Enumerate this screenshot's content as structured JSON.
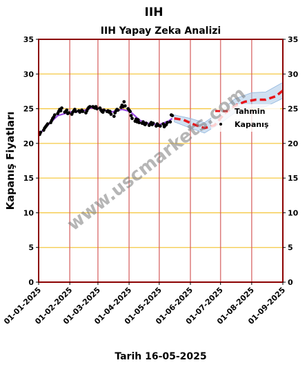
{
  "page_title": "IIH",
  "xlabel_text": "Tarih 16-05-2025",
  "watermark": "www.uscmarkets.com",
  "chart_data": {
    "type": "line",
    "title": "IIH Yapay Zeka Analizi",
    "xlabel": "Tarih 16-05-2025",
    "ylabel": "Kapanış Fiyatları",
    "ylim": [
      0,
      35
    ],
    "yticks": [
      0,
      5,
      10,
      15,
      20,
      25,
      30,
      35
    ],
    "xlim": [
      "2025-01-01",
      "2025-09-01"
    ],
    "xticks": [
      "2025-01-01",
      "2025-02-01",
      "2025-03-01",
      "2025-04-01",
      "2025-05-01",
      "2025-06-01",
      "2025-07-01",
      "2025-08-01",
      "2025-09-01"
    ],
    "xtick_labels": [
      "01-01-2025",
      "01-02-2025",
      "01-03-2025",
      "01-04-2025",
      "01-05-2025",
      "01-06-2025",
      "01-07-2025",
      "01-08-2025",
      "01-09-2025"
    ],
    "legend_position": "right",
    "colors": {
      "frame": "#8b0000",
      "hgrid": "#f5c842",
      "vgrid": "#d45a5a",
      "actual": "#000000",
      "smooth": "#8a2be2",
      "forecast": "#e8141a",
      "band": "#a9c8e8"
    },
    "series": [
      {
        "name": "Kapanış",
        "style": "scatter",
        "points": [
          [
            "2025-01-02",
            21.3
          ],
          [
            "2025-01-03",
            21.6
          ],
          [
            "2025-01-06",
            21.9
          ],
          [
            "2025-01-07",
            22.2
          ],
          [
            "2025-01-08",
            22.4
          ],
          [
            "2025-01-09",
            22.6
          ],
          [
            "2025-01-10",
            22.8
          ],
          [
            "2025-01-13",
            23.0
          ],
          [
            "2025-01-14",
            23.3
          ],
          [
            "2025-01-15",
            23.6
          ],
          [
            "2025-01-16",
            23.8
          ],
          [
            "2025-01-17",
            24.1
          ],
          [
            "2025-01-20",
            24.3
          ],
          [
            "2025-01-21",
            24.6
          ],
          [
            "2025-01-22",
            24.9
          ],
          [
            "2025-01-23",
            24.7
          ],
          [
            "2025-01-24",
            25.1
          ],
          [
            "2025-01-27",
            24.5
          ],
          [
            "2025-01-28",
            24.6
          ],
          [
            "2025-01-29",
            24.8
          ],
          [
            "2025-01-30",
            24.3
          ],
          [
            "2025-01-31",
            24.4
          ],
          [
            "2025-02-03",
            24.2
          ],
          [
            "2025-02-04",
            24.5
          ],
          [
            "2025-02-05",
            24.7
          ],
          [
            "2025-02-06",
            24.9
          ],
          [
            "2025-02-07",
            24.6
          ],
          [
            "2025-02-10",
            24.7
          ],
          [
            "2025-02-11",
            24.5
          ],
          [
            "2025-02-12",
            24.6
          ],
          [
            "2025-02-13",
            24.8
          ],
          [
            "2025-02-14",
            24.6
          ],
          [
            "2025-02-17",
            24.4
          ],
          [
            "2025-02-18",
            24.7
          ],
          [
            "2025-02-19",
            25.0
          ],
          [
            "2025-02-20",
            25.2
          ],
          [
            "2025-02-21",
            25.3
          ],
          [
            "2025-02-24",
            25.3
          ],
          [
            "2025-02-25",
            25.2
          ],
          [
            "2025-02-26",
            25.1
          ],
          [
            "2025-02-27",
            25.3
          ],
          [
            "2025-02-28",
            25.0
          ],
          [
            "2025-03-03",
            25.1
          ],
          [
            "2025-03-04",
            24.8
          ],
          [
            "2025-03-05",
            24.6
          ],
          [
            "2025-03-06",
            24.5
          ],
          [
            "2025-03-07",
            24.8
          ],
          [
            "2025-03-10",
            24.6
          ],
          [
            "2025-03-11",
            24.7
          ],
          [
            "2025-03-12",
            24.5
          ],
          [
            "2025-03-13",
            24.6
          ],
          [
            "2025-03-14",
            24.2
          ],
          [
            "2025-03-17",
            23.9
          ],
          [
            "2025-03-18",
            24.4
          ],
          [
            "2025-03-19",
            24.7
          ],
          [
            "2025-03-20",
            24.9
          ],
          [
            "2025-03-21",
            24.8
          ],
          [
            "2025-03-24",
            25.2
          ],
          [
            "2025-03-25",
            25.5
          ],
          [
            "2025-03-26",
            25.3
          ],
          [
            "2025-03-27",
            26.0
          ],
          [
            "2025-03-28",
            25.4
          ],
          [
            "2025-03-31",
            25.0
          ],
          [
            "2025-04-01",
            24.8
          ],
          [
            "2025-04-02",
            24.6
          ],
          [
            "2025-04-03",
            24.0
          ],
          [
            "2025-04-04",
            23.6
          ],
          [
            "2025-04-07",
            23.2
          ],
          [
            "2025-04-08",
            23.5
          ],
          [
            "2025-04-09",
            23.1
          ],
          [
            "2025-04-10",
            23.4
          ],
          [
            "2025-04-11",
            23.0
          ],
          [
            "2025-04-14",
            22.9
          ],
          [
            "2025-04-15",
            23.1
          ],
          [
            "2025-04-16",
            22.8
          ],
          [
            "2025-04-17",
            22.7
          ],
          [
            "2025-04-18",
            22.9
          ],
          [
            "2025-04-21",
            22.6
          ],
          [
            "2025-04-22",
            22.8
          ],
          [
            "2025-04-23",
            23.0
          ],
          [
            "2025-04-24",
            22.7
          ],
          [
            "2025-04-25",
            22.9
          ],
          [
            "2025-04-28",
            22.5
          ],
          [
            "2025-04-29",
            22.8
          ],
          [
            "2025-04-30",
            22.6
          ],
          [
            "2025-05-02",
            22.5
          ],
          [
            "2025-05-05",
            22.8
          ],
          [
            "2025-05-06",
            22.4
          ],
          [
            "2025-05-07",
            22.6
          ],
          [
            "2025-05-08",
            22.7
          ],
          [
            "2025-05-09",
            23.0
          ],
          [
            "2025-05-12",
            23.1
          ],
          [
            "2025-05-13",
            24.1
          ],
          [
            "2025-05-14",
            24.0
          ]
        ]
      },
      {
        "name": "",
        "style": "smooth",
        "points": [
          [
            "2025-01-02",
            21.4
          ],
          [
            "2025-01-10",
            22.6
          ],
          [
            "2025-01-20",
            24.0
          ],
          [
            "2025-02-01",
            24.5
          ],
          [
            "2025-02-12",
            24.6
          ],
          [
            "2025-02-22",
            25.1
          ],
          [
            "2025-03-03",
            25.0
          ],
          [
            "2025-03-14",
            24.5
          ],
          [
            "2025-03-25",
            24.9
          ],
          [
            "2025-04-02",
            24.6
          ],
          [
            "2025-04-12",
            23.3
          ],
          [
            "2025-04-22",
            22.8
          ],
          [
            "2025-05-01",
            22.7
          ],
          [
            "2025-05-10",
            23.2
          ],
          [
            "2025-05-14",
            23.6
          ]
        ]
      },
      {
        "name": "Tahmin",
        "style": "dashed",
        "points": [
          [
            "2025-05-16",
            23.6
          ],
          [
            "2025-05-25",
            23.4
          ],
          [
            "2025-06-05",
            22.7
          ],
          [
            "2025-06-15",
            22.2
          ],
          [
            "2025-06-25",
            22.6
          ],
          [
            "2025-07-05",
            24.3
          ],
          [
            "2025-07-15",
            25.4
          ],
          [
            "2025-07-25",
            26.0
          ],
          [
            "2025-08-05",
            26.3
          ],
          [
            "2025-08-15",
            26.3
          ],
          [
            "2025-08-25",
            26.8
          ],
          [
            "2025-09-01",
            27.6
          ]
        ]
      }
    ],
    "confidence_band": [
      [
        "2025-05-16",
        23.1,
        24.1
      ],
      [
        "2025-06-01",
        22.2,
        23.6
      ],
      [
        "2025-06-15",
        21.5,
        23.0
      ],
      [
        "2025-07-01",
        22.9,
        24.6
      ],
      [
        "2025-07-15",
        24.4,
        26.4
      ],
      [
        "2025-08-01",
        25.2,
        27.3
      ],
      [
        "2025-08-15",
        25.3,
        27.4
      ],
      [
        "2025-09-01",
        26.5,
        28.8
      ]
    ]
  }
}
